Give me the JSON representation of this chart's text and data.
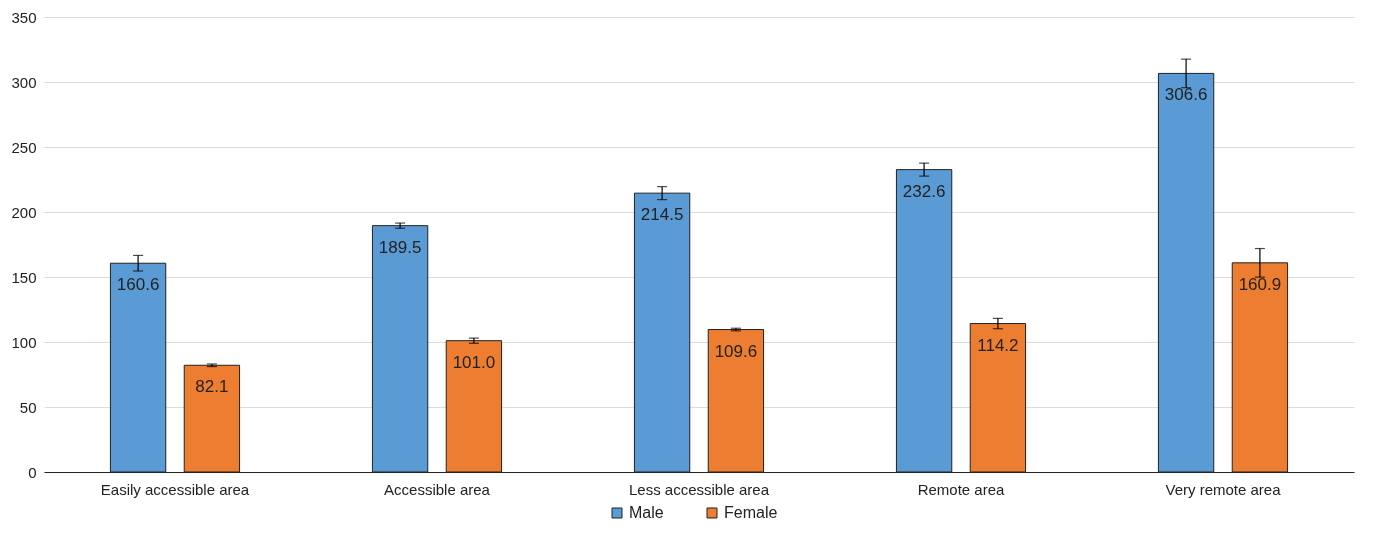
{
  "chart_data": {
    "type": "bar",
    "categories": [
      "Easily accessible area",
      "Accessible area",
      "Less accessible area",
      "Remote area",
      "Very remote area"
    ],
    "series": [
      {
        "name": "Male",
        "color": "#5b9bd5",
        "values": [
          160.6,
          189.5,
          214.5,
          232.6,
          306.6
        ],
        "errors": [
          6,
          2,
          5,
          5,
          11
        ],
        "value_labels": [
          "160.6",
          "189.5",
          "214.5",
          "232.6",
          "306.6"
        ]
      },
      {
        "name": "Female",
        "color": "#ed7d31",
        "values": [
          82.1,
          101.0,
          109.6,
          114.2,
          160.9
        ],
        "errors": [
          1,
          2,
          1,
          4,
          11
        ],
        "value_labels": [
          "82.1",
          "101.0",
          "109.6",
          "114.2",
          "160.9"
        ]
      }
    ],
    "ylim": [
      0,
      350
    ],
    "yticks": [
      0,
      50,
      100,
      150,
      200,
      250,
      300,
      350
    ],
    "grid": "y",
    "legend": "bottom"
  }
}
